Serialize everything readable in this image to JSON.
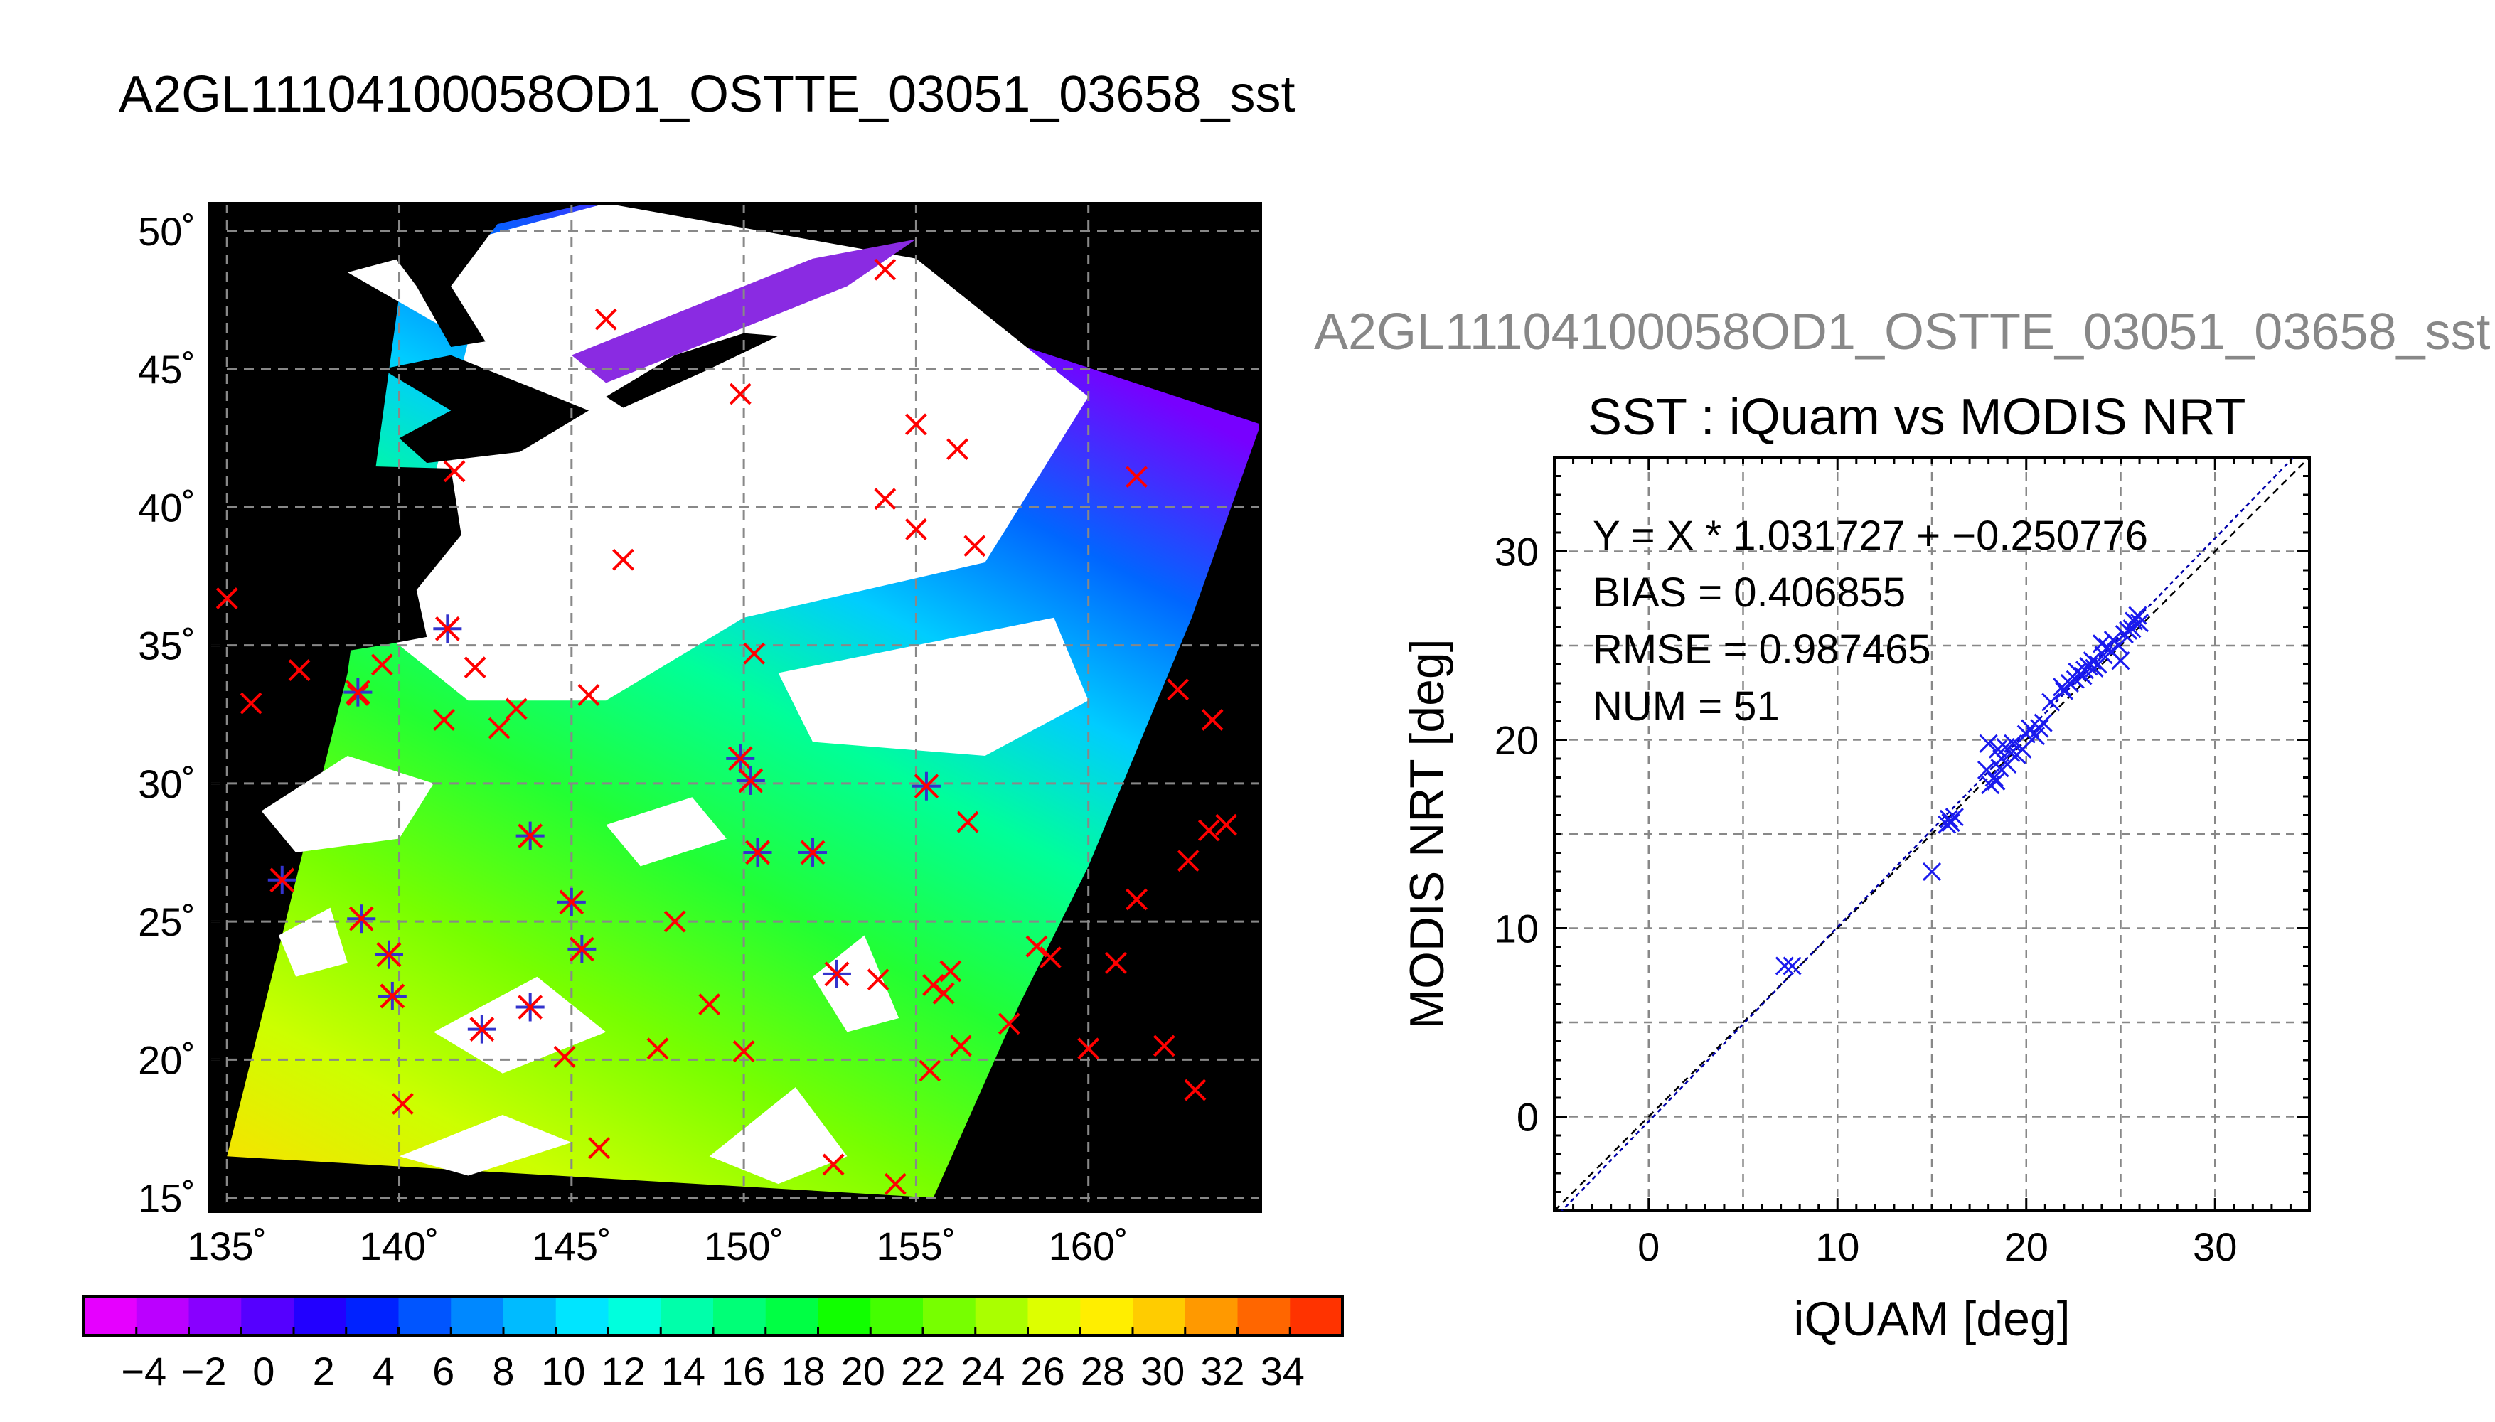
{
  "titles": {
    "main": "A2GL11104100058OD1_OSTTE_03051_03658_sst",
    "secondary": "A2GL11104100058OD1_OSTTE_03051_03658_sst",
    "scatter": "SST : iQuam vs MODIS NRT"
  },
  "colors": {
    "land_nodata": "#000000",
    "cloud": "#ffffff",
    "marker_iquam": "#ff0000",
    "marker_matched": "#3333cc",
    "scatter_marker": "#1a1aee",
    "fit_line": "#0000aa",
    "grid": "#888888"
  },
  "colorbar": {
    "colors": [
      "#e600ff",
      "#bb00ff",
      "#8800ff",
      "#5500ff",
      "#2200ff",
      "#0022ff",
      "#0055ff",
      "#0088ff",
      "#00bbff",
      "#00e5ff",
      "#00ffdd",
      "#00ffaa",
      "#00ff77",
      "#00ff44",
      "#11ff00",
      "#44ff00",
      "#77ff00",
      "#aaff00",
      "#ddff00",
      "#ffee00",
      "#ffcc00",
      "#ff9900",
      "#ff6600",
      "#ff3300"
    ],
    "labels": [
      "−4",
      "−2",
      "0",
      "2",
      "4",
      "6",
      "8",
      "10",
      "12",
      "14",
      "16",
      "18",
      "20",
      "22",
      "24",
      "26",
      "28",
      "30",
      "32",
      "34"
    ]
  },
  "chart_data": [
    {
      "type": "map",
      "title": "A2GL11104100058OD1_OSTTE_03051_03658_sst",
      "xlim": [
        134.5,
        165
      ],
      "ylim": [
        14.5,
        51
      ],
      "xticks": [
        135,
        140,
        145,
        150,
        155,
        160
      ],
      "yticks": [
        15,
        20,
        25,
        30,
        35,
        40,
        45,
        50
      ],
      "xtick_labels": [
        "135˚",
        "140˚",
        "145˚",
        "150˚",
        "155˚",
        "160˚"
      ],
      "ytick_labels": [
        "15˚",
        "20˚",
        "25˚",
        "30˚",
        "35˚",
        "40˚",
        "45˚",
        "50˚"
      ],
      "grid": true,
      "swath_edge_east": [
        [
          155.5,
          15
        ],
        [
          158,
          22
        ],
        [
          160,
          27
        ],
        [
          163,
          36
        ],
        [
          165,
          43
        ]
      ],
      "iquam_points": [
        [
          135,
          36.7
        ],
        [
          135.7,
          32.9
        ],
        [
          136.6,
          26.5
        ],
        [
          137.1,
          34.1
        ],
        [
          138.8,
          33.2
        ],
        [
          138.9,
          25.1
        ],
        [
          139.5,
          34.3
        ],
        [
          139.7,
          23.8
        ],
        [
          139.8,
          22.3
        ],
        [
          140.1,
          18.4
        ],
        [
          141.4,
          35.6
        ],
        [
          141.3,
          32.3
        ],
        [
          141.6,
          41.3
        ],
        [
          142.2,
          34.2
        ],
        [
          142.4,
          21.1
        ],
        [
          142.9,
          32.0
        ],
        [
          143.4,
          32.7
        ],
        [
          143.8,
          28.1
        ],
        [
          143.8,
          21.9
        ],
        [
          144.8,
          20.1
        ],
        [
          145.0,
          25.7
        ],
        [
          145.3,
          24.0
        ],
        [
          145.5,
          33.2
        ],
        [
          145.8,
          16.8
        ],
        [
          146.0,
          46.8
        ],
        [
          146.5,
          38.1
        ],
        [
          147.5,
          20.4
        ],
        [
          148.0,
          25.0
        ],
        [
          149.0,
          22.0
        ],
        [
          149.9,
          44.1
        ],
        [
          149.9,
          30.9
        ],
        [
          150.0,
          20.3
        ],
        [
          150.2,
          30.1
        ],
        [
          150.3,
          34.7
        ],
        [
          150.4,
          27.5
        ],
        [
          152.0,
          27.5
        ],
        [
          152.6,
          16.2
        ],
        [
          152.7,
          23.1
        ],
        [
          154.1,
          48.6
        ],
        [
          154.1,
          40.3
        ],
        [
          153.9,
          22.9
        ],
        [
          154.4,
          15.5
        ],
        [
          155.0,
          43.0
        ],
        [
          155.0,
          39.2
        ],
        [
          155.3,
          29.9
        ],
        [
          155.4,
          19.6
        ],
        [
          155.5,
          22.7
        ],
        [
          155.8,
          22.4
        ],
        [
          156.0,
          23.2
        ],
        [
          156.2,
          42.1
        ],
        [
          156.3,
          20.5
        ],
        [
          156.5,
          28.6
        ],
        [
          156.7,
          38.6
        ],
        [
          157.7,
          21.3
        ],
        [
          158.5,
          24.1
        ],
        [
          158.9,
          23.7
        ],
        [
          160.0,
          20.4
        ],
        [
          160.8,
          23.5
        ],
        [
          161.4,
          41.1
        ],
        [
          161.4,
          25.8
        ],
        [
          162.2,
          20.5
        ],
        [
          162.6,
          33.4
        ],
        [
          162.9,
          27.2
        ],
        [
          163.1,
          18.9
        ],
        [
          163.5,
          28.3
        ],
        [
          163.6,
          32.3
        ],
        [
          164.0,
          28.5
        ]
      ],
      "matched_points": [
        [
          138.8,
          33.3
        ],
        [
          136.6,
          26.5
        ],
        [
          138.9,
          25.1
        ],
        [
          139.7,
          23.8
        ],
        [
          139.8,
          22.3
        ],
        [
          141.4,
          35.6
        ],
        [
          142.4,
          21.1
        ],
        [
          143.8,
          28.1
        ],
        [
          143.8,
          21.9
        ],
        [
          145.0,
          25.7
        ],
        [
          145.3,
          24.0
        ],
        [
          149.9,
          30.9
        ],
        [
          150.2,
          30.1
        ],
        [
          150.4,
          27.5
        ],
        [
          152.0,
          27.5
        ],
        [
          152.7,
          23.1
        ],
        [
          155.3,
          29.9
        ]
      ]
    },
    {
      "type": "scatter",
      "title": "SST : iQuam vs MODIS NRT",
      "xlabel": "iQUAM [deg]",
      "ylabel": "MODIS NRT [deg]",
      "xlim": [
        -5,
        35
      ],
      "ylim": [
        -5,
        35
      ],
      "xticks": [
        0,
        10,
        20,
        30
      ],
      "yticks": [
        0,
        10,
        20,
        30
      ],
      "grid": true,
      "annotations": [
        "Y = X * 1.031727 + −0.250776",
        "BIAS = 0.406855",
        "RMSE = 0.987465",
        "NUM = 51"
      ],
      "fit": {
        "slope": 1.031727,
        "intercept": -0.250776
      },
      "points": [
        [
          7.2,
          8.0
        ],
        [
          7.6,
          8.0
        ],
        [
          15.0,
          13.0
        ],
        [
          15.8,
          15.5
        ],
        [
          15.9,
          15.8
        ],
        [
          16.0,
          15.6
        ],
        [
          18.0,
          19.8
        ],
        [
          18.1,
          17.6
        ],
        [
          18.3,
          18.0
        ],
        [
          18.5,
          19.5
        ],
        [
          18.6,
          18.5
        ],
        [
          18.7,
          19.0
        ],
        [
          18.9,
          19.6
        ],
        [
          19.0,
          18.7
        ],
        [
          19.2,
          19.3
        ],
        [
          19.5,
          19.2
        ],
        [
          19.8,
          19.5
        ],
        [
          20.0,
          20.3
        ],
        [
          20.2,
          20.6
        ],
        [
          20.5,
          20.2
        ],
        [
          20.7,
          20.6
        ],
        [
          21.3,
          22.0
        ],
        [
          21.9,
          22.8
        ],
        [
          22.3,
          23.0
        ],
        [
          22.6,
          23.2
        ],
        [
          22.7,
          23.6
        ],
        [
          23.0,
          23.4
        ],
        [
          23.1,
          23.7
        ],
        [
          23.3,
          23.9
        ],
        [
          23.6,
          23.8
        ],
        [
          23.8,
          24.0
        ],
        [
          24.1,
          24.5
        ],
        [
          24.3,
          24.9
        ],
        [
          24.6,
          25.3
        ],
        [
          24.9,
          25.0
        ],
        [
          25.0,
          24.2
        ],
        [
          25.2,
          25.6
        ],
        [
          25.6,
          25.9
        ],
        [
          25.7,
          26.3
        ],
        [
          25.9,
          26.6
        ],
        [
          26.0,
          26.2
        ],
        [
          16.2,
          15.9
        ],
        [
          18.4,
          17.8
        ],
        [
          19.3,
          19.8
        ],
        [
          22.0,
          22.6
        ],
        [
          23.5,
          24.2
        ],
        [
          24.5,
          24.7
        ],
        [
          25.4,
          25.8
        ],
        [
          20.9,
          20.9
        ],
        [
          17.9,
          18.4
        ],
        [
          24.0,
          25.1
        ]
      ]
    }
  ]
}
